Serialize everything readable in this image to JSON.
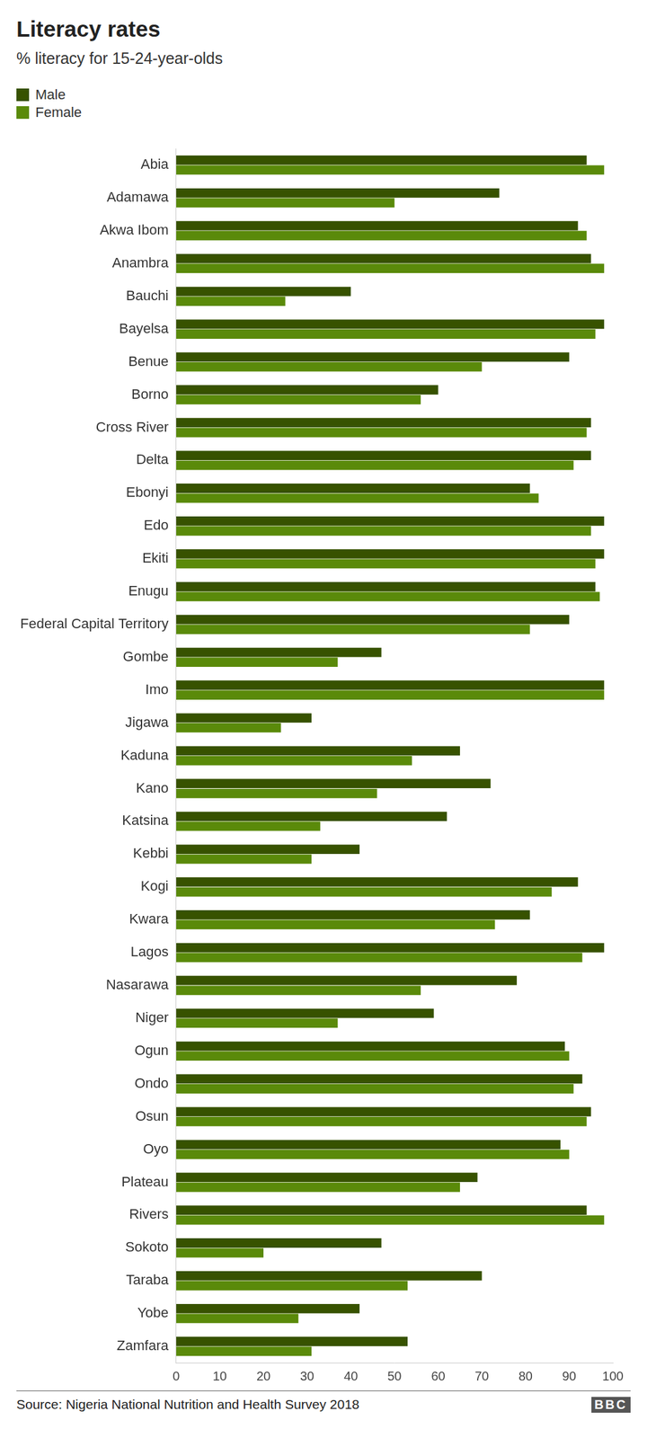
{
  "chart_data": {
    "type": "bar",
    "orientation": "horizontal",
    "title": "Literacy rates",
    "subtitle": "% literacy for 15-24-year-olds",
    "source": "Source: Nigeria National Nutrition and Health Survey 2018",
    "credit": "BBC",
    "legend": "top-left",
    "grid": false,
    "data_labels": false,
    "categories": [
      "Abia",
      "Adamawa",
      "Akwa Ibom",
      "Anambra",
      "Bauchi",
      "Bayelsa",
      "Benue",
      "Borno",
      "Cross River",
      "Delta",
      "Ebonyi",
      "Edo",
      "Ekiti",
      "Enugu",
      "Federal Capital Territory",
      "Gombe",
      "Imo",
      "Jigawa",
      "Kaduna",
      "Kano",
      "Katsina",
      "Kebbi",
      "Kogi",
      "Kwara",
      "Lagos",
      "Nasarawa",
      "Niger",
      "Ogun",
      "Ondo",
      "Osun",
      "Oyo",
      "Plateau",
      "Rivers",
      "Sokoto",
      "Taraba",
      "Yobe",
      "Zamfara"
    ],
    "series": [
      {
        "name": "Male",
        "color": "#375200",
        "values": [
          94,
          74,
          92,
          95,
          40,
          98,
          90,
          60,
          95,
          95,
          81,
          98,
          98,
          96,
          90,
          47,
          98,
          31,
          65,
          72,
          62,
          42,
          92,
          81,
          98,
          78,
          59,
          89,
          93,
          95,
          88,
          69,
          94,
          47,
          70,
          42,
          53
        ]
      },
      {
        "name": "Female",
        "color": "#5a8a0a",
        "values": [
          98,
          50,
          94,
          98,
          25,
          96,
          70,
          56,
          94,
          91,
          83,
          95,
          96,
          97,
          81,
          37,
          98,
          24,
          54,
          46,
          33,
          31,
          86,
          73,
          93,
          56,
          37,
          90,
          91,
          94,
          90,
          65,
          98,
          20,
          53,
          28,
          31
        ]
      }
    ],
    "xlim": [
      0,
      100
    ],
    "xticks": [
      0,
      10,
      20,
      30,
      40,
      50,
      60,
      70,
      80,
      90,
      100
    ]
  }
}
